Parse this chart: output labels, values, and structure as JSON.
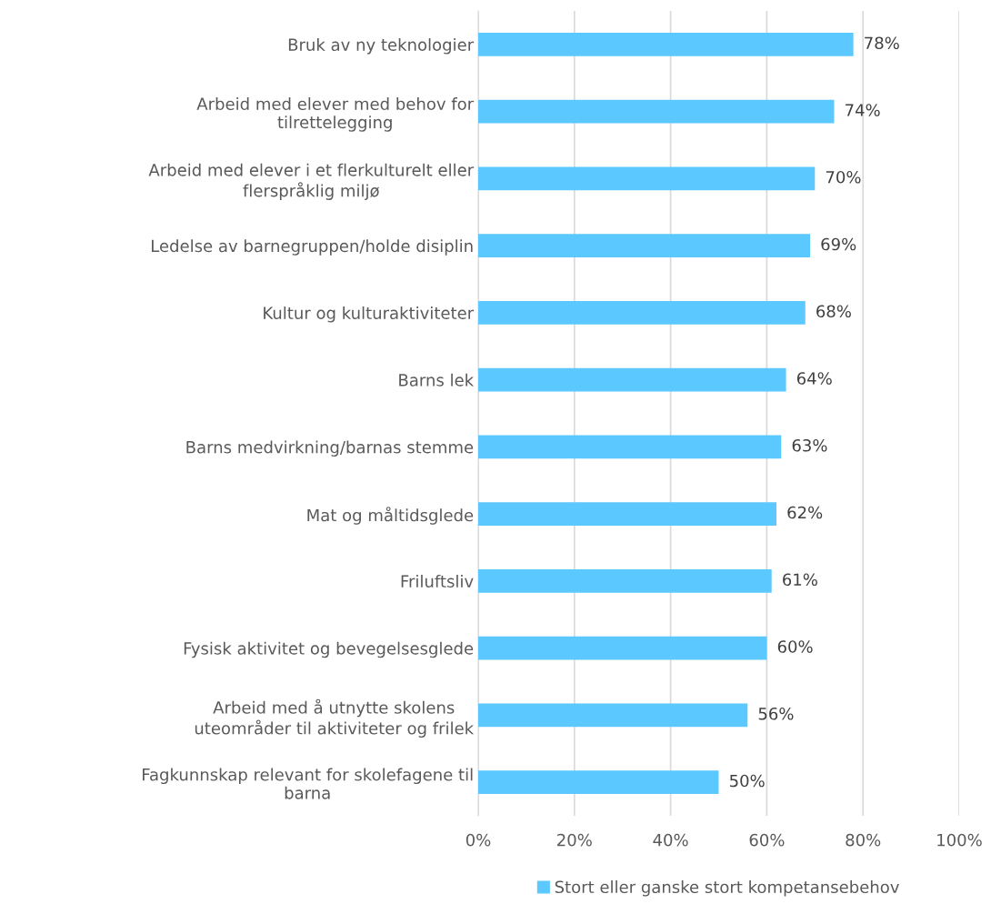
{
  "chart_data": {
    "type": "bar",
    "orientation": "horizontal",
    "categories": [
      "Bruk av ny teknologier",
      "Arbeid med elever med behov for\ntilrettelegging",
      "Arbeid med elever i et flerkulturelt eller\nflerspråklig miljø",
      "Ledelse av barnegruppen/holde disiplin",
      "Kultur og kulturaktiviteter",
      "Barns lek",
      "Barns medvirkning/barnas stemme",
      "Mat og måltidsglede",
      "Friluftsliv",
      "Fysisk aktivitet og bevegelsesglede",
      "Arbeid med å utnytte skolens\nuteområder til aktiviteter og frilek",
      "Fagkunnskap relevant for skolefagene til\nbarna"
    ],
    "series": [
      {
        "name": "Stort eller ganske stort kompetansebehov",
        "color": "#5bc8ff",
        "values": [
          78,
          74,
          70,
          69,
          68,
          64,
          63,
          62,
          61,
          60,
          56,
          50
        ],
        "value_labels": [
          "78%",
          "74%",
          "70%",
          "69%",
          "68%",
          "64%",
          "63%",
          "62%",
          "61%",
          "60%",
          "56%",
          "50%"
        ]
      }
    ],
    "xlim": [
      0,
      100
    ],
    "xticks": [
      {
        "value": 0,
        "label": "0%"
      },
      {
        "value": 20,
        "label": "20%"
      },
      {
        "value": 40,
        "label": "40%"
      },
      {
        "value": 60,
        "label": "60%"
      },
      {
        "value": 80,
        "label": "80%"
      },
      {
        "value": 100,
        "label": "100%"
      }
    ],
    "grid": "x",
    "legend": "bottom"
  }
}
